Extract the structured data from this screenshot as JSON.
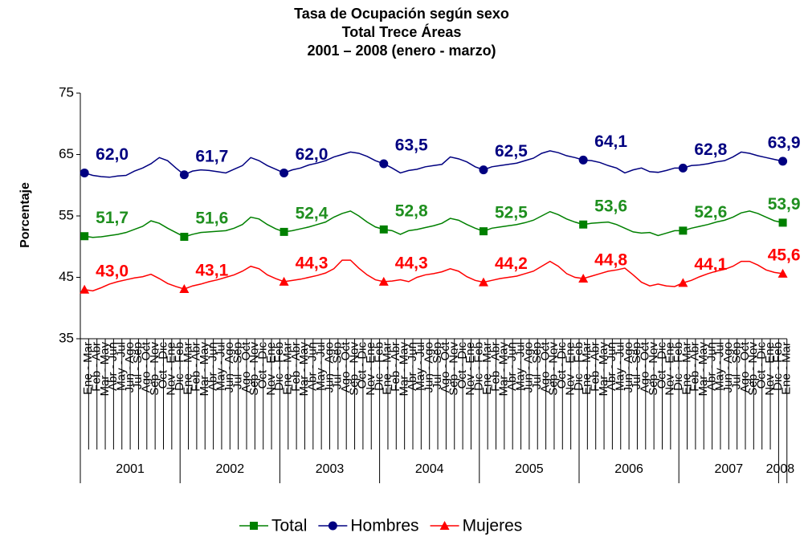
{
  "chart_data": {
    "type": "line",
    "title": [
      "Tasa de Ocupación según sexo",
      "Total  Trece Áreas",
      "2001 – 2008 (enero - marzo)"
    ],
    "y_label": "Porcentaje",
    "ylim": [
      35,
      75
    ],
    "yticks": [
      35,
      45,
      55,
      65,
      75
    ],
    "grid": false,
    "legend": "bottom",
    "categories": [
      "Ene - Mar",
      "Feb - Abr",
      "Mar - May",
      "Abr - Jun",
      "May - Jul",
      "Jun - Ago",
      "Jul - Sep",
      "Ago - Oct",
      "Sep - Nov",
      "Oct - Dic",
      "Nov - Ene",
      "Dic - Feb",
      "Ene - Mar",
      "Feb - Abr",
      "Mar - May",
      "Abr - Jun",
      "May - Jul",
      "Jun - Ago",
      "Jul - Sep",
      "Ago - Oct",
      "Sep - Nov",
      "Oct - Dic",
      "Nov - Ene",
      "Dic - Feb",
      "Ene - Mar",
      "Feb - Abr",
      "Mar - May",
      "Abr - Jun",
      "May - Jul",
      "Jun - Ago",
      "Jul - Sep",
      "Ago - Oct",
      "Sep - Nov",
      "Oct - Dic",
      "Nov - Ene",
      "Dic - Feb",
      "Ene - Mar",
      "Feb - Abr",
      "Mar - May",
      "Abr - Jun",
      "May - Jul",
      "Jun - Ago",
      "Jul - Sep",
      "Ago - Oct",
      "Sep - Nov",
      "Oct - Dic",
      "Nov - Ene",
      "Dic - Feb",
      "Ene - Mar",
      "Feb - Abr",
      "Mar - May",
      "Abr - Jun",
      "May - Jul",
      "Jun - Ago",
      "Jul - Sep",
      "Ago - Oct",
      "Sep - Nov",
      "Oct - Dic",
      "Nov - Ene",
      "Dic - Feb",
      "Ene - Mar",
      "Feb - Abr",
      "Mar - May",
      "Abr - Jun",
      "May - Jul",
      "Jun - Ago",
      "Jul - Sep",
      "Ago - Oct",
      "Sep - Nov",
      "Oct - Dic",
      "Nov - Ene",
      "Dic - Feb",
      "Ene - Mar",
      "Feb - Abr",
      "Mar - May",
      "Abr - Jun",
      "May - Jul",
      "Jun - Ago",
      "Jul - Sep",
      "Ago - Oct",
      "Sep - Nov",
      "Oct - Dic",
      "Nov - Ene",
      "Dic - Feb",
      "Ene - Mar"
    ],
    "year_groups": [
      "2001",
      "2002",
      "2003",
      "2004",
      "2005",
      "2006",
      "2007",
      "2008"
    ],
    "series": [
      {
        "name": "Total",
        "color": "#008000",
        "label_color": "#1f8f1f",
        "marker": "square",
        "values": [
          51.7,
          51.5,
          51.6,
          51.8,
          52.0,
          52.3,
          52.8,
          53.3,
          54.2,
          53.8,
          53.0,
          52.3,
          51.6,
          52.0,
          52.3,
          52.4,
          52.5,
          52.6,
          53.0,
          53.6,
          54.8,
          54.5,
          53.6,
          52.9,
          52.4,
          52.6,
          52.9,
          53.2,
          53.6,
          54.0,
          54.8,
          55.4,
          55.8,
          55.0,
          54.0,
          53.2,
          52.8,
          52.6,
          52.0,
          52.6,
          52.8,
          53.1,
          53.4,
          53.8,
          54.6,
          54.3,
          53.6,
          53.0,
          52.5,
          53.0,
          53.2,
          53.4,
          53.6,
          53.9,
          54.3,
          55.0,
          55.7,
          55.2,
          54.5,
          54.0,
          53.6,
          53.8,
          53.9,
          54.0,
          53.6,
          53.0,
          52.4,
          52.2,
          52.3,
          51.8,
          52.2,
          52.6,
          52.6,
          53.0,
          53.3,
          53.6,
          54.0,
          54.3,
          54.8,
          55.5,
          55.8,
          55.4,
          54.8,
          54.2,
          53.9
        ],
        "value_labels": [
          "51,7",
          null,
          null,
          null,
          null,
          null,
          null,
          null,
          null,
          null,
          null,
          null,
          "51,6",
          null,
          null,
          null,
          null,
          null,
          null,
          null,
          null,
          null,
          null,
          null,
          "52,4",
          null,
          null,
          null,
          null,
          null,
          null,
          null,
          null,
          null,
          null,
          null,
          "52,8",
          null,
          null,
          null,
          null,
          null,
          null,
          null,
          null,
          null,
          null,
          null,
          "52,5",
          null,
          null,
          null,
          null,
          null,
          null,
          null,
          null,
          null,
          null,
          null,
          "53,6",
          null,
          null,
          null,
          null,
          null,
          null,
          null,
          null,
          null,
          null,
          null,
          "52,6",
          null,
          null,
          null,
          null,
          null,
          null,
          null,
          null,
          null,
          null,
          null,
          "53,9"
        ]
      },
      {
        "name": "Hombres",
        "color": "#000080",
        "label_color": "#000080",
        "marker": "circle",
        "values": [
          62.0,
          61.6,
          61.4,
          61.3,
          61.5,
          61.6,
          62.3,
          62.8,
          63.5,
          64.5,
          64.0,
          62.8,
          61.7,
          62.3,
          62.5,
          62.4,
          62.2,
          62.0,
          62.6,
          63.2,
          64.5,
          64.0,
          63.2,
          62.6,
          62.0,
          62.5,
          62.8,
          63.3,
          63.6,
          64.0,
          64.6,
          65.0,
          65.4,
          65.2,
          64.7,
          64.0,
          63.5,
          62.8,
          62.0,
          62.4,
          62.6,
          63.0,
          63.2,
          63.4,
          64.6,
          64.3,
          63.8,
          63.0,
          62.5,
          63.0,
          63.2,
          63.4,
          63.6,
          64.0,
          64.4,
          65.2,
          65.6,
          65.3,
          64.8,
          64.5,
          64.1,
          64.0,
          63.7,
          63.2,
          62.8,
          62.0,
          62.5,
          62.8,
          62.2,
          62.1,
          62.4,
          62.8,
          62.8,
          63.2,
          63.3,
          63.5,
          63.8,
          64.0,
          64.6,
          65.4,
          65.2,
          64.8,
          64.5,
          64.2,
          63.9
        ],
        "value_labels": [
          "62,0",
          null,
          null,
          null,
          null,
          null,
          null,
          null,
          null,
          null,
          null,
          null,
          "61,7",
          null,
          null,
          null,
          null,
          null,
          null,
          null,
          null,
          null,
          null,
          null,
          "62,0",
          null,
          null,
          null,
          null,
          null,
          null,
          null,
          null,
          null,
          null,
          null,
          "63,5",
          null,
          null,
          null,
          null,
          null,
          null,
          null,
          null,
          null,
          null,
          null,
          "62,5",
          null,
          null,
          null,
          null,
          null,
          null,
          null,
          null,
          null,
          null,
          null,
          "64,1",
          null,
          null,
          null,
          null,
          null,
          null,
          null,
          null,
          null,
          null,
          null,
          "62,8",
          null,
          null,
          null,
          null,
          null,
          null,
          null,
          null,
          null,
          null,
          null,
          "63,9"
        ]
      },
      {
        "name": "Mujeres",
        "color": "#ff0000",
        "label_color": "#ff0000",
        "marker": "triangle",
        "values": [
          43.0,
          42.8,
          43.3,
          43.9,
          44.3,
          44.6,
          44.9,
          45.1,
          45.5,
          44.8,
          44.0,
          43.5,
          43.1,
          43.6,
          43.9,
          44.3,
          44.6,
          45.0,
          45.4,
          46.0,
          46.8,
          46.4,
          45.4,
          44.8,
          44.3,
          44.5,
          44.7,
          45.0,
          45.3,
          45.7,
          46.4,
          47.8,
          47.8,
          46.5,
          45.4,
          44.6,
          44.3,
          44.4,
          44.6,
          44.3,
          45.0,
          45.4,
          45.6,
          45.9,
          46.4,
          46.0,
          45.1,
          44.5,
          44.2,
          44.5,
          44.8,
          45.0,
          45.2,
          45.6,
          46.0,
          46.8,
          47.6,
          46.8,
          45.6,
          45.0,
          44.8,
          45.2,
          45.6,
          46.0,
          46.2,
          46.5,
          45.4,
          44.2,
          43.6,
          43.9,
          43.6,
          43.5,
          44.1,
          44.5,
          45.1,
          45.6,
          46.0,
          46.3,
          46.8,
          47.6,
          47.6,
          47.0,
          46.2,
          45.8,
          45.6
        ],
        "value_labels": [
          "43,0",
          null,
          null,
          null,
          null,
          null,
          null,
          null,
          null,
          null,
          null,
          null,
          "43,1",
          null,
          null,
          null,
          null,
          null,
          null,
          null,
          null,
          null,
          null,
          null,
          "44,3",
          null,
          null,
          null,
          null,
          null,
          null,
          null,
          null,
          null,
          null,
          null,
          "44,3",
          null,
          null,
          null,
          null,
          null,
          null,
          null,
          null,
          null,
          null,
          null,
          "44,2",
          null,
          null,
          null,
          null,
          null,
          null,
          null,
          null,
          null,
          null,
          null,
          "44,8",
          null,
          null,
          null,
          null,
          null,
          null,
          null,
          null,
          null,
          null,
          null,
          "44,1",
          null,
          null,
          null,
          null,
          null,
          null,
          null,
          null,
          null,
          null,
          null,
          "45,6"
        ]
      }
    ]
  }
}
